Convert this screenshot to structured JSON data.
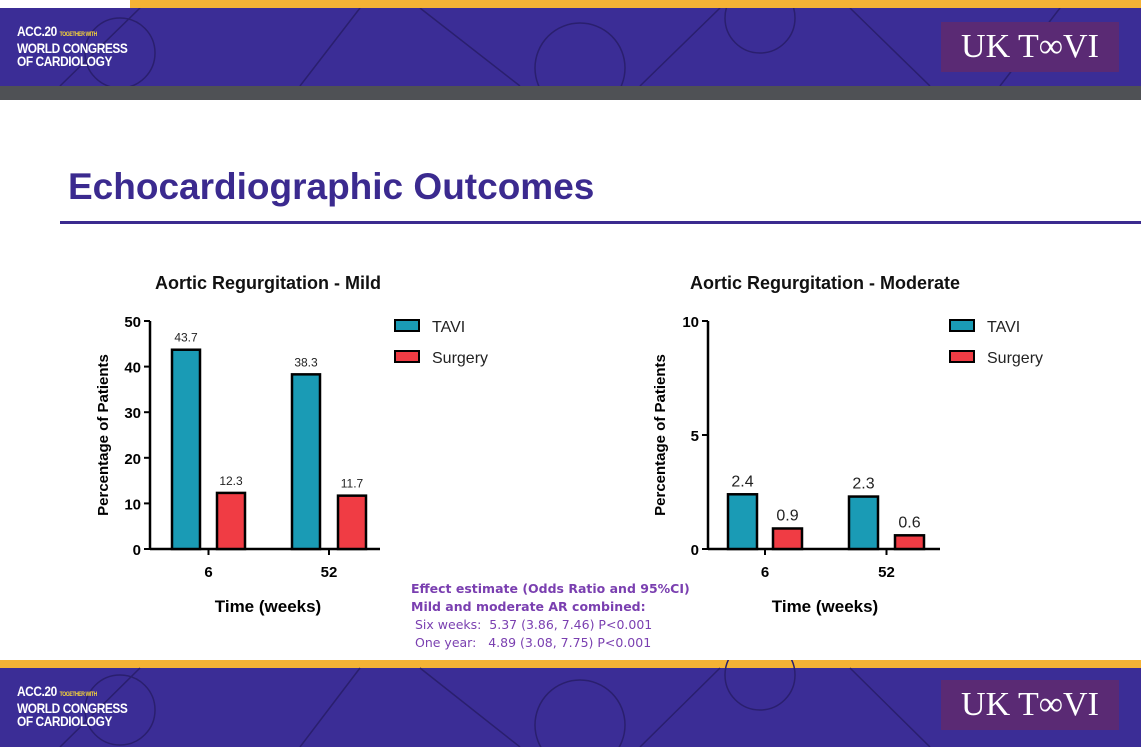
{
  "header": {
    "acc_logo": "ACC.20 TOGETHER WITH WORLD CONGRESS OF CARDIOLOGY",
    "uk_tavi_logo": "UK TAVI"
  },
  "slide": {
    "title": "Echocardiographic Outcomes"
  },
  "effect": {
    "heading": "Effect estimate (Odds Ratio and 95%CI)",
    "subheading": "Mild and moderate AR combined:",
    "rows": [
      "Six weeks:  5.37 (3.86, 7.46) P<0.001",
      "One year:   4.89 (3.08, 7.75) P<0.001"
    ]
  },
  "colors": {
    "tavi": "#1a9bb5",
    "surgery": "#f03c44",
    "brand": "#3b2a8f"
  },
  "chart_data": [
    {
      "type": "bar",
      "title": "Aortic Regurgitation - Mild",
      "xlabel": "Time (weeks)",
      "ylabel": "Percentage of Patients",
      "categories": [
        "6",
        "52"
      ],
      "ylim": [
        0,
        50
      ],
      "yticks": [
        0,
        10,
        20,
        30,
        40,
        50
      ],
      "series": [
        {
          "name": "TAVI",
          "values": [
            43.7,
            38.3
          ],
          "labels": [
            "43.7",
            "38.3"
          ]
        },
        {
          "name": "Surgery",
          "values": [
            12.3,
            11.7
          ],
          "labels": [
            "12.3",
            "11.7"
          ]
        }
      ],
      "legend": "top-right"
    },
    {
      "type": "bar",
      "title": "Aortic Regurgitation - Moderate",
      "xlabel": "Time (weeks)",
      "ylabel": "Percentage of Patients",
      "categories": [
        "6",
        "52"
      ],
      "ylim": [
        0,
        10
      ],
      "yticks": [
        0,
        5,
        10
      ],
      "series": [
        {
          "name": "TAVI",
          "values": [
            2.4,
            2.3
          ],
          "labels": [
            "2.4",
            "2.3"
          ]
        },
        {
          "name": "Surgery",
          "values": [
            0.9,
            0.6
          ],
          "labels": [
            "0.9",
            "0.6"
          ]
        }
      ],
      "legend": "top-right"
    }
  ]
}
